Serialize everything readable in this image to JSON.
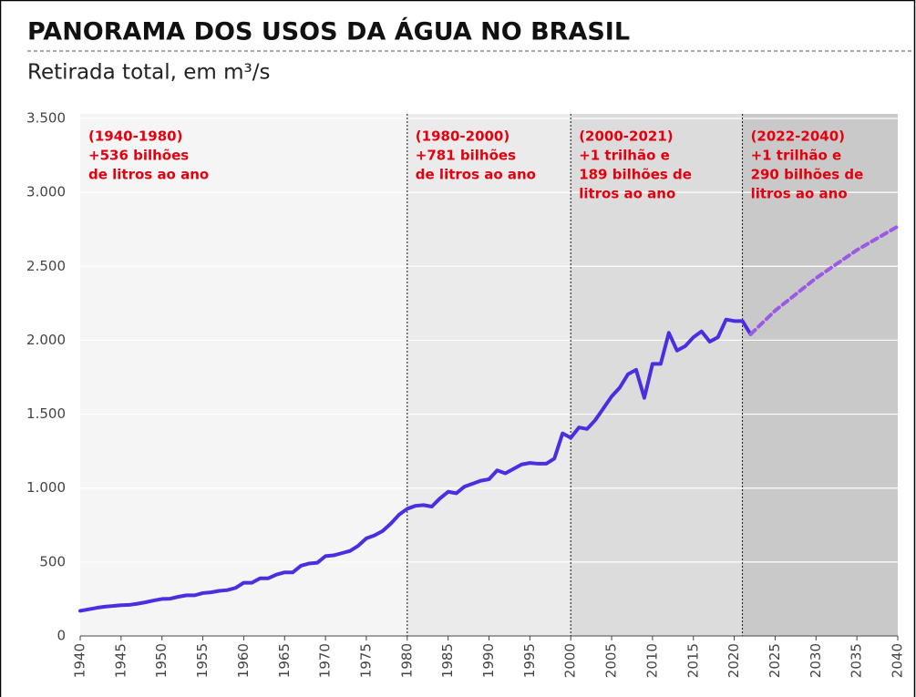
{
  "chart_data": {
    "type": "line",
    "title": "PANORAMA DOS USOS DA ÁGUA NO BRASIL",
    "subtitle": "Retirada total, em m³/s",
    "xlim": [
      1940,
      2040
    ],
    "xticks": [
      1940,
      1945,
      1950,
      1955,
      1960,
      1965,
      1970,
      1975,
      1980,
      1985,
      1990,
      1995,
      2000,
      2005,
      2010,
      2015,
      2020,
      2025,
      2030,
      2035,
      2040
    ],
    "ylim": [
      0,
      3500
    ],
    "yticks": [
      0,
      500,
      {
        "value": 1000,
        "label": "1.000"
      },
      {
        "value": 1500,
        "label": "1.500"
      },
      {
        "value": 2000,
        "label": "2.000"
      },
      {
        "value": 2500,
        "label": "2.500"
      },
      {
        "value": 3000,
        "label": "3.000"
      },
      {
        "value": 3500,
        "label": "3.500"
      }
    ],
    "grid": true,
    "periods": [
      {
        "start": 1940,
        "end": 1980,
        "color": "#f5f5f5",
        "lines": [
          "(1940-1980)",
          "+536 bilhões",
          "de litros ao ano"
        ]
      },
      {
        "start": 1980,
        "end": 2000,
        "color": "#ebebeb",
        "lines": [
          "(1980-2000)",
          "+781 bilhões",
          "de litros ao ano"
        ]
      },
      {
        "start": 2000,
        "end": 2021,
        "color": "#dcdcdc",
        "lines": [
          "(2000-2021)",
          "+1 trilhão e",
          "189 bilhões de",
          "litros ao ano"
        ]
      },
      {
        "start": 2021,
        "end": 2040,
        "color": "#c9c9c9",
        "lines": [
          "(2022-2040)",
          "+1 trilhão e",
          "290 bilhões de",
          "litros ao ano"
        ]
      }
    ],
    "series": [
      {
        "color": "#4b2ee0",
        "dashed": false,
        "x": [
          1940,
          1941,
          1942,
          1943,
          1944,
          1945,
          1946,
          1947,
          1948,
          1949,
          1950,
          1951,
          1952,
          1953,
          1954,
          1955,
          1956,
          1957,
          1958,
          1959,
          1960,
          1961,
          1962,
          1963,
          1964,
          1965,
          1966,
          1967,
          1968,
          1969,
          1970,
          1971,
          1972,
          1973,
          1974,
          1975,
          1976,
          1977,
          1978,
          1979,
          1980,
          1981,
          1982,
          1983,
          1984,
          1985,
          1986,
          1987,
          1988,
          1989,
          1990,
          1991,
          1992,
          1993,
          1994,
          1995,
          1996,
          1997,
          1998,
          1999,
          2000,
          2001,
          2002,
          2003,
          2004,
          2005,
          2006,
          2007,
          2008,
          2009,
          2010,
          2011,
          2012,
          2013,
          2014,
          2015,
          2016,
          2017,
          2018,
          2019,
          2020,
          2021,
          2022
        ],
        "values": [
          170,
          180,
          190,
          198,
          203,
          208,
          210,
          218,
          228,
          240,
          250,
          252,
          265,
          275,
          275,
          290,
          295,
          305,
          310,
          325,
          360,
          360,
          390,
          390,
          415,
          430,
          430,
          475,
          490,
          495,
          540,
          545,
          560,
          575,
          610,
          660,
          680,
          710,
          760,
          820,
          860,
          880,
          885,
          875,
          930,
          975,
          965,
          1010,
          1030,
          1050,
          1060,
          1120,
          1100,
          1130,
          1160,
          1170,
          1165,
          1165,
          1200,
          1370,
          1340,
          1410,
          1400,
          1460,
          1540,
          1620,
          1680,
          1770,
          1800,
          1610,
          1840,
          1840,
          2050,
          1930,
          1960,
          2020,
          2060,
          1990,
          2020,
          2140,
          2130,
          2130,
          2040
        ]
      },
      {
        "color": "#9a5ae6",
        "dashed": true,
        "x": [
          2022,
          2025,
          2030,
          2035,
          2040
        ],
        "values": [
          2040,
          2200,
          2420,
          2610,
          2770
        ]
      }
    ]
  }
}
